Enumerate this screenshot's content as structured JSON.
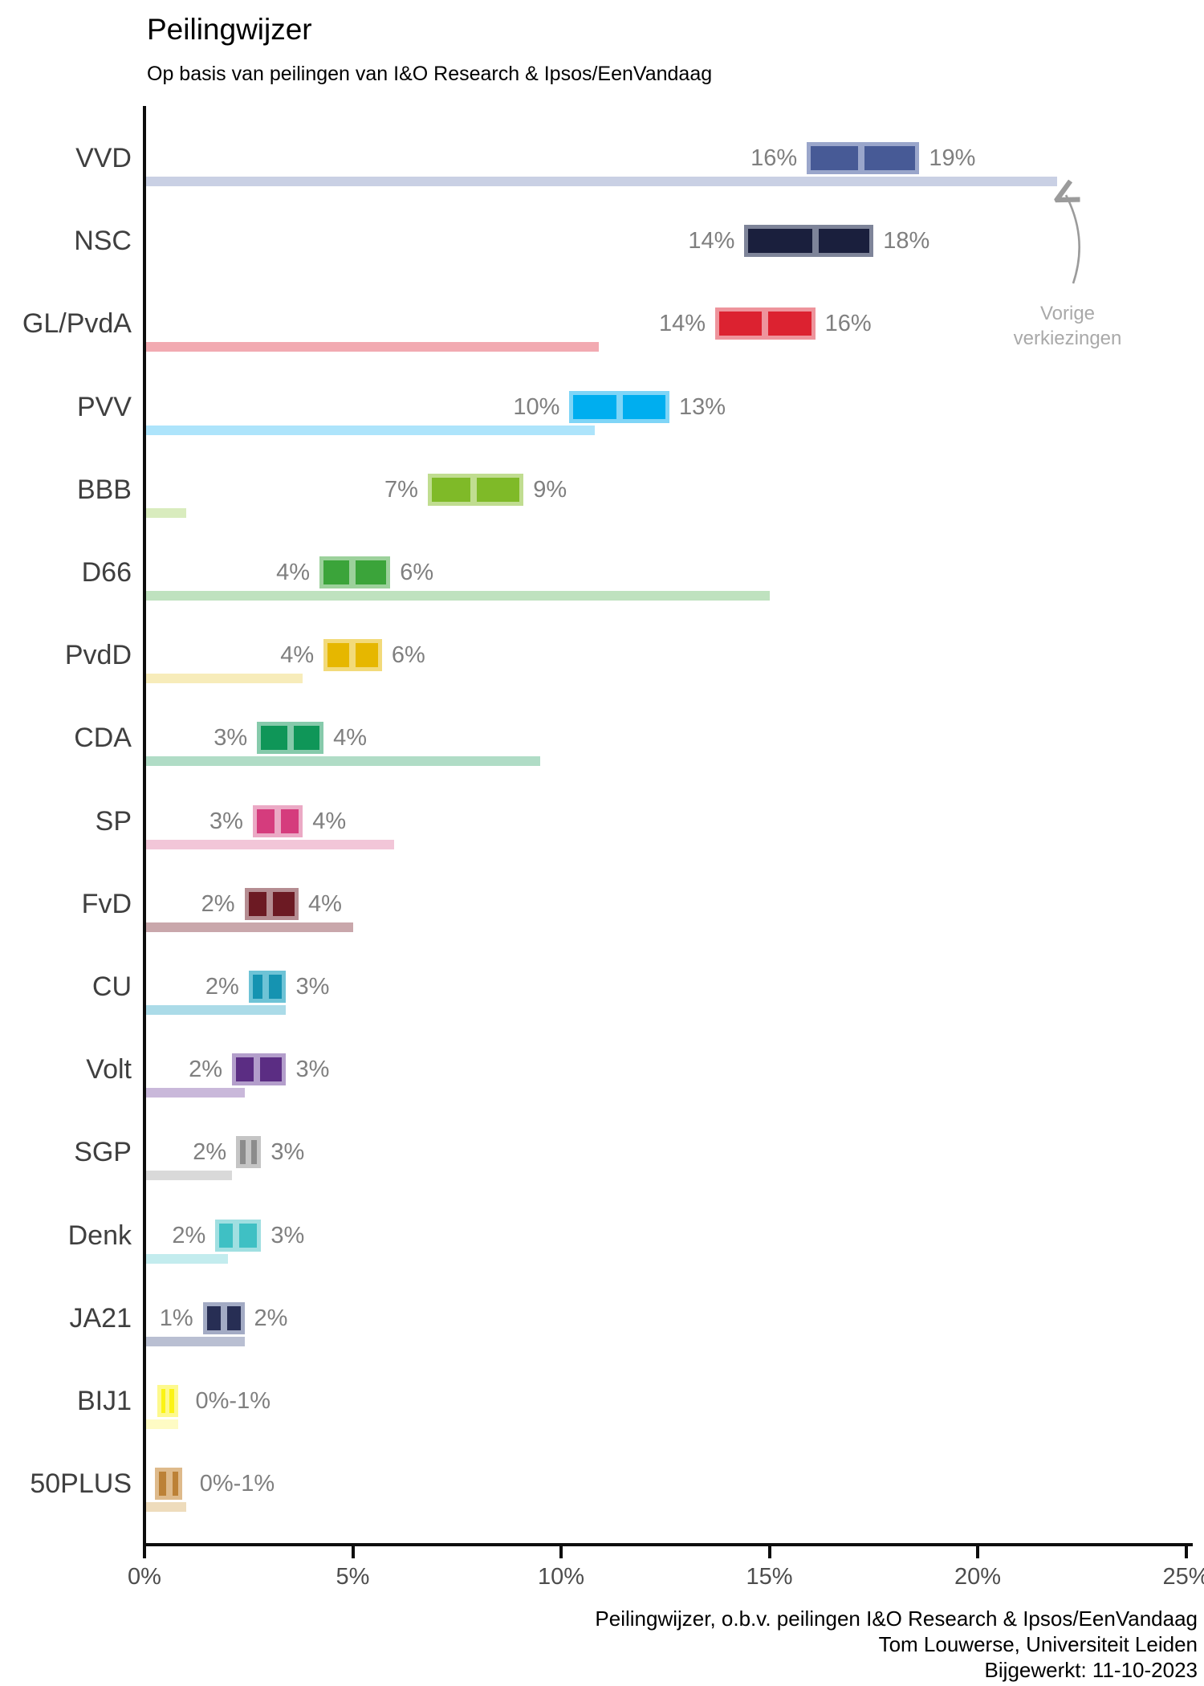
{
  "title": "Peilingwijzer",
  "subtitle": "Op basis van peilingen van I&O Research & Ipsos/EenVandaag",
  "annotation": {
    "line1": "Vorige",
    "line2": "verkiezingen"
  },
  "footer": {
    "line1": "Peilingwijzer, o.b.v. peilingen I&O Research & Ipsos/EenVandaag",
    "line2": "Tom Louwerse, Universiteit Leiden",
    "line3": "Bijgewerkt: 11-10-2023"
  },
  "chart_data": {
    "type": "bar",
    "orientation": "horizontal",
    "title": "Peilingwijzer",
    "subtitle": "Op basis van peilingen van I&O Research & Ipsos/EenVandaag",
    "unit": "percent of vote",
    "xlim": [
      0,
      25
    ],
    "x_axis": {
      "tick_labels": [
        "0%",
        "5%",
        "10%",
        "15%",
        "20%",
        "25%"
      ],
      "tick_values": [
        0,
        5,
        10,
        15,
        20,
        25
      ]
    },
    "grid": false,
    "legend": "none",
    "light_bar_meaning": "Vorige verkiezingen (previous election result)",
    "box_meaning": "polling estimate interval with median line, labels show rounded low/high",
    "categories": [
      "VVD",
      "NSC",
      "GL/PvdA",
      "PVV",
      "BBB",
      "D66",
      "PvdD",
      "CDA",
      "SP",
      "FvD",
      "CU",
      "Volt",
      "SGP",
      "Denk",
      "JA21",
      "BIJ1",
      "50PLUS"
    ],
    "parties": [
      {
        "name": "VVD",
        "low": 15.9,
        "high": 18.6,
        "median": 17.2,
        "prev": 21.9,
        "label_low": "16%",
        "label_high": "19%",
        "color": "#475a96",
        "color_light": "#9aa6cb",
        "color_prev": "#c9d0e4"
      },
      {
        "name": "NSC",
        "low": 14.4,
        "high": 17.5,
        "median": 16.1,
        "prev": null,
        "label_low": "14%",
        "label_high": "18%",
        "color": "#1a1f3d",
        "color_light": "#7e8499",
        "color_prev": null
      },
      {
        "name": "GL/PvdA",
        "low": 13.7,
        "high": 16.1,
        "median": 14.9,
        "prev": 10.9,
        "label_low": "14%",
        "label_high": "16%",
        "color": "#dc2230",
        "color_light": "#ee949c",
        "color_prev": "#f2aab1"
      },
      {
        "name": "PVV",
        "low": 10.2,
        "high": 12.6,
        "median": 11.4,
        "prev": 10.8,
        "label_low": "10%",
        "label_high": "13%",
        "color": "#00aeef",
        "color_light": "#7fd5f7",
        "color_prev": "#ade4fb"
      },
      {
        "name": "BBB",
        "low": 6.8,
        "high": 9.1,
        "median": 7.9,
        "prev": 1.0,
        "label_low": "7%",
        "label_high": "9%",
        "color": "#7fba28",
        "color_light": "#c0dd90",
        "color_prev": "#d9ecbe"
      },
      {
        "name": "D66",
        "low": 4.2,
        "high": 5.9,
        "median": 5.0,
        "prev": 15.0,
        "label_low": "4%",
        "label_high": "6%",
        "color": "#3ba43a",
        "color_light": "#9cd19b",
        "color_prev": "#bfe2bf"
      },
      {
        "name": "PvdD",
        "low": 4.3,
        "high": 5.7,
        "median": 5.0,
        "prev": 3.8,
        "label_low": "4%",
        "label_high": "6%",
        "color": "#e6b700",
        "color_light": "#f2da7a",
        "color_prev": "#f7ecba"
      },
      {
        "name": "CDA",
        "low": 2.7,
        "high": 4.3,
        "median": 3.5,
        "prev": 9.5,
        "label_low": "3%",
        "label_high": "4%",
        "color": "#0f9658",
        "color_light": "#86caab",
        "color_prev": "#b0dcc6"
      },
      {
        "name": "SP",
        "low": 2.6,
        "high": 3.8,
        "median": 3.2,
        "prev": 6.0,
        "label_low": "3%",
        "label_high": "4%",
        "color": "#d53c7d",
        "color_light": "#eba9c5",
        "color_prev": "#f2c6d8"
      },
      {
        "name": "FvD",
        "low": 2.4,
        "high": 3.7,
        "median": 3.0,
        "prev": 5.0,
        "label_low": "2%",
        "label_high": "4%",
        "color": "#6c1a23",
        "color_light": "#b58d92",
        "color_prev": "#c9a7ab"
      },
      {
        "name": "CU",
        "low": 2.5,
        "high": 3.4,
        "median": 2.9,
        "prev": 3.4,
        "label_low": "2%",
        "label_high": "3%",
        "color": "#1593b1",
        "color_light": "#6ec3d6",
        "color_prev": "#abdbe8"
      },
      {
        "name": "Volt",
        "low": 2.1,
        "high": 3.4,
        "median": 2.7,
        "prev": 2.4,
        "label_low": "2%",
        "label_high": "3%",
        "color": "#5b2d83",
        "color_light": "#b39ecb",
        "color_prev": "#c9b8da"
      },
      {
        "name": "SGP",
        "low": 2.2,
        "high": 2.8,
        "median": 2.5,
        "prev": 2.1,
        "label_low": "2%",
        "label_high": "3%",
        "color": "#8c8c8c",
        "color_light": "#c5c5c5",
        "color_prev": "#d9d9d9"
      },
      {
        "name": "Denk",
        "low": 1.7,
        "high": 2.8,
        "median": 2.2,
        "prev": 2.0,
        "label_low": "2%",
        "label_high": "3%",
        "color": "#3fc0c4",
        "color_light": "#a0dfe1",
        "color_prev": "#c3ecee"
      },
      {
        "name": "JA21",
        "low": 1.4,
        "high": 2.4,
        "median": 1.9,
        "prev": 2.4,
        "label_low": "1%",
        "label_high": "2%",
        "color": "#272e54",
        "color_light": "#a3abc4",
        "color_prev": "#b9bfd2"
      },
      {
        "name": "BIJ1",
        "low": 0.3,
        "high": 0.8,
        "median": 0.55,
        "prev": 0.8,
        "label_low": null,
        "label_high": "0%-1%",
        "color": "#fbf315",
        "color_light": "#fdf98e",
        "color_prev": "#fefbc4"
      },
      {
        "name": "50PLUS",
        "low": 0.25,
        "high": 0.9,
        "median": 0.6,
        "prev": 1.0,
        "label_low": null,
        "label_high": "0%-1%",
        "color": "#bc8136",
        "color_light": "#deba8b",
        "color_prev": "#eedcbc"
      }
    ]
  }
}
